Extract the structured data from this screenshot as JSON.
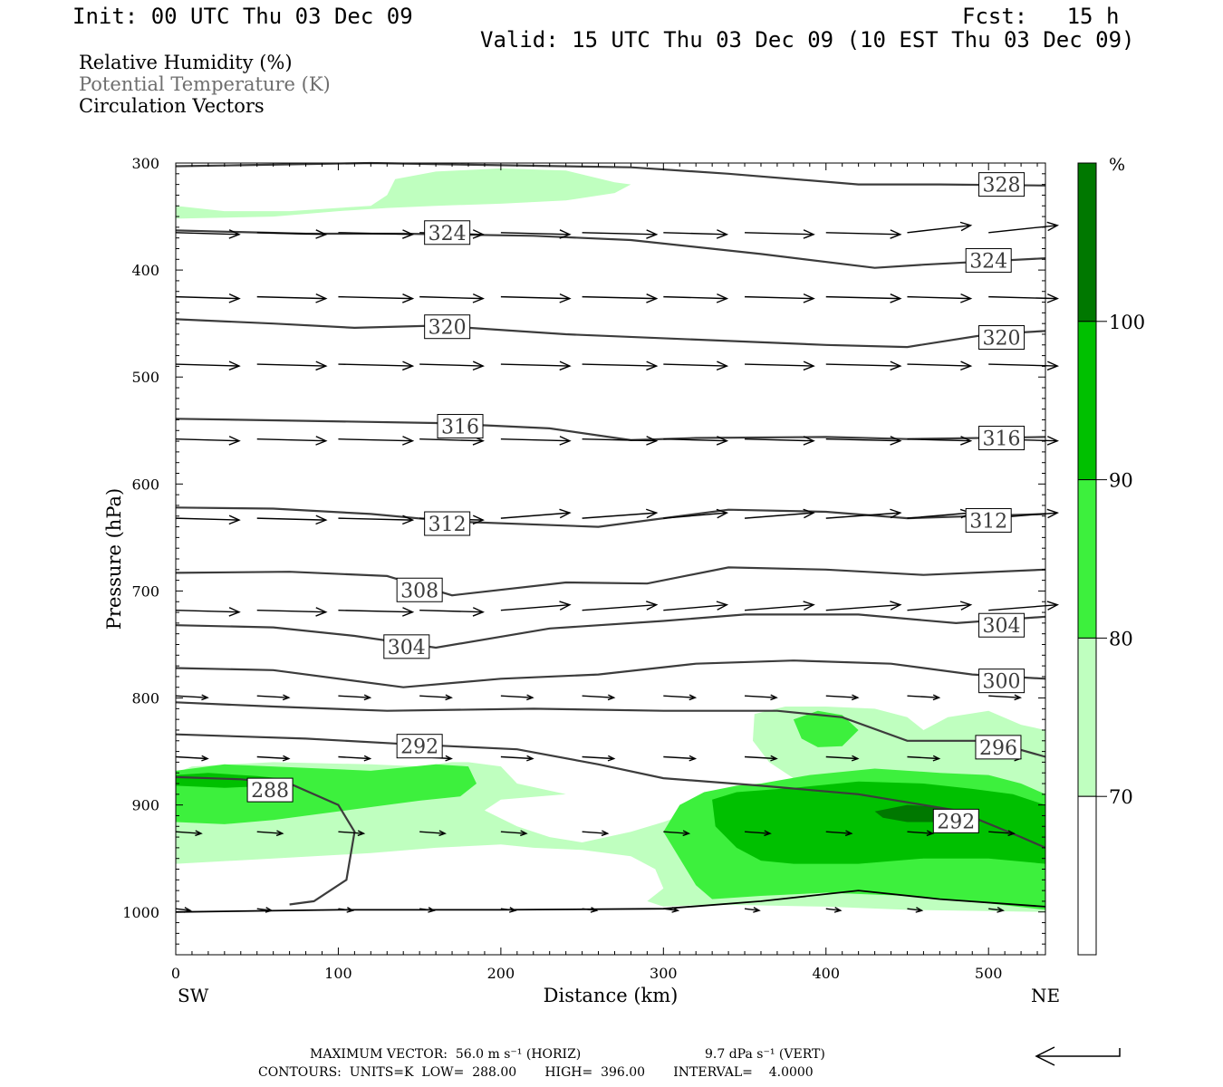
{
  "header": {
    "init": "Init: 00 UTC Thu 03 Dec 09",
    "fcst": "Fcst:   15 h",
    "valid": "Valid: 15 UTC Thu 03 Dec 09 (10 EST Thu 03 Dec 09)"
  },
  "legend": {
    "line1": "Relative Humidity (%)",
    "line2": "Potential Temperature (K)",
    "line3": "Circulation Vectors"
  },
  "footer": {
    "max_vector_left": "MAXIMUM VECTOR:  56.0 m s⁻¹ (HORIZ)",
    "max_vector_right": "9.7 dPa s⁻¹ (VERT)",
    "contours": "CONTOURS:  UNITS=K  LOW=  288.00       HIGH=  396.00       INTERVAL=    4.0000"
  },
  "colors": {
    "rh_70_80": "#bfffbf",
    "rh_80_90": "#3df03d",
    "rh_90_100": "#00c000",
    "rh_100": "#007800",
    "theta_line": "#3c3c3c",
    "vector": "#000000"
  },
  "chart_data": {
    "type": "cross-section",
    "xlabel": "Distance (km)",
    "ylabel": "Pressure (hPa)",
    "x_left_label": "SW",
    "x_right_label": "NE",
    "xlim": [
      0,
      535
    ],
    "ylim": [
      1040,
      300
    ],
    "xticks": [
      0,
      100,
      200,
      300,
      400,
      500
    ],
    "yticks": [
      300,
      400,
      500,
      600,
      700,
      800,
      900,
      1000
    ],
    "colorbar": {
      "unit": "%",
      "levels": [
        70,
        80,
        90,
        100
      ]
    },
    "theta_contours": [
      {
        "value": 328,
        "label": "328",
        "label_at": [
          508,
          320
        ],
        "points": [
          [
            0,
            303
          ],
          [
            40,
            302
          ],
          [
            120,
            300
          ],
          [
            200,
            302
          ],
          [
            280,
            304
          ],
          [
            340,
            310
          ],
          [
            420,
            320
          ],
          [
            470,
            320
          ],
          [
            535,
            321
          ]
        ]
      },
      {
        "value": 324,
        "label": "324",
        "label_at": [
          167,
          365
        ],
        "points": [
          [
            0,
            363
          ],
          [
            80,
            366
          ],
          [
            140,
            366
          ],
          [
            220,
            368
          ],
          [
            280,
            372
          ],
          [
            360,
            385
          ],
          [
            430,
            398
          ],
          [
            460,
            395
          ],
          [
            535,
            389
          ]
        ]
      },
      {
        "value": 324,
        "label": "324",
        "label_at": [
          500,
          391
        ],
        "points": []
      },
      {
        "value": 320,
        "label": "320",
        "label_at": [
          167,
          453
        ],
        "points": [
          [
            0,
            446
          ],
          [
            60,
            450
          ],
          [
            110,
            454
          ],
          [
            160,
            452
          ],
          [
            240,
            460
          ],
          [
            320,
            465
          ],
          [
            400,
            470
          ],
          [
            450,
            472
          ],
          [
            500,
            460
          ],
          [
            535,
            457
          ]
        ]
      },
      {
        "value": 320,
        "label": "320",
        "label_at": [
          508,
          463
        ],
        "points": []
      },
      {
        "value": 316,
        "label": "316",
        "label_at": [
          175,
          546
        ],
        "points": [
          [
            0,
            539
          ],
          [
            80,
            541
          ],
          [
            160,
            543
          ],
          [
            230,
            548
          ],
          [
            280,
            559
          ],
          [
            320,
            557
          ],
          [
            400,
            556
          ],
          [
            450,
            558
          ],
          [
            535,
            556
          ]
        ]
      },
      {
        "value": 316,
        "label": "316",
        "label_at": [
          508,
          557
        ],
        "points": []
      },
      {
        "value": 312,
        "label": "312",
        "label_at": [
          167,
          637
        ],
        "points": [
          [
            0,
            622
          ],
          [
            60,
            623
          ],
          [
            120,
            628
          ],
          [
            170,
            635
          ],
          [
            260,
            640
          ],
          [
            340,
            624
          ],
          [
            400,
            626
          ],
          [
            450,
            632
          ],
          [
            535,
            628
          ]
        ]
      },
      {
        "value": 312,
        "label": "312",
        "label_at": [
          500,
          634
        ],
        "points": []
      },
      {
        "value": 308,
        "label": "308",
        "label_at": [
          150,
          699
        ],
        "points": [
          [
            0,
            683
          ],
          [
            70,
            682
          ],
          [
            130,
            686
          ],
          [
            170,
            704
          ],
          [
            240,
            692
          ],
          [
            290,
            693
          ],
          [
            340,
            678
          ],
          [
            400,
            680
          ],
          [
            460,
            685
          ],
          [
            535,
            680
          ]
        ]
      },
      {
        "value": 304,
        "label": "304",
        "label_at": [
          142,
          752
        ],
        "points": [
          [
            0,
            732
          ],
          [
            60,
            734
          ],
          [
            110,
            742
          ],
          [
            160,
            753
          ],
          [
            230,
            735
          ],
          [
            300,
            728
          ],
          [
            350,
            722
          ],
          [
            420,
            722
          ],
          [
            480,
            730
          ],
          [
            535,
            724
          ]
        ]
      },
      {
        "value": 304,
        "label": "304",
        "label_at": [
          508,
          732
        ],
        "points": []
      },
      {
        "value": 300,
        "label": "300",
        "label_at": [
          508,
          784
        ],
        "points": [
          [
            0,
            772
          ],
          [
            60,
            774
          ],
          [
            140,
            790
          ],
          [
            200,
            782
          ],
          [
            260,
            778
          ],
          [
            320,
            768
          ],
          [
            380,
            765
          ],
          [
            440,
            768
          ],
          [
            490,
            778
          ],
          [
            535,
            782
          ]
        ]
      },
      {
        "value": 296,
        "label": "296",
        "label_at": [
          506,
          846
        ],
        "points": [
          [
            0,
            804
          ],
          [
            60,
            808
          ],
          [
            130,
            812
          ],
          [
            220,
            810
          ],
          [
            300,
            812
          ],
          [
            370,
            812
          ],
          [
            410,
            818
          ],
          [
            450,
            840
          ],
          [
            500,
            840
          ],
          [
            535,
            855
          ]
        ]
      },
      {
        "value": 292,
        "label": "292",
        "label_at": [
          150,
          845
        ],
        "points": [
          [
            0,
            834
          ],
          [
            80,
            838
          ],
          [
            140,
            843
          ],
          [
            210,
            848
          ],
          [
            260,
            862
          ],
          [
            300,
            875
          ],
          [
            360,
            882
          ],
          [
            420,
            890
          ],
          [
            480,
            905
          ],
          [
            520,
            930
          ],
          [
            535,
            940
          ]
        ]
      },
      {
        "value": 292,
        "label": "292",
        "label_at": [
          480,
          915
        ],
        "points": []
      },
      {
        "value": 288,
        "label": "288",
        "label_at": [
          58,
          886
        ],
        "points": [
          [
            0,
            874
          ],
          [
            40,
            876
          ],
          [
            70,
            880
          ],
          [
            100,
            900
          ],
          [
            110,
            925
          ],
          [
            105,
            970
          ],
          [
            85,
            990
          ],
          [
            70,
            993
          ]
        ]
      }
    ],
    "rh_shading_note": "RH >= 70% in low levels (850-1000 hPa) with core >90% near 400-500 km at 900-940 hPa; light band 300-345 hPa on left"
  }
}
